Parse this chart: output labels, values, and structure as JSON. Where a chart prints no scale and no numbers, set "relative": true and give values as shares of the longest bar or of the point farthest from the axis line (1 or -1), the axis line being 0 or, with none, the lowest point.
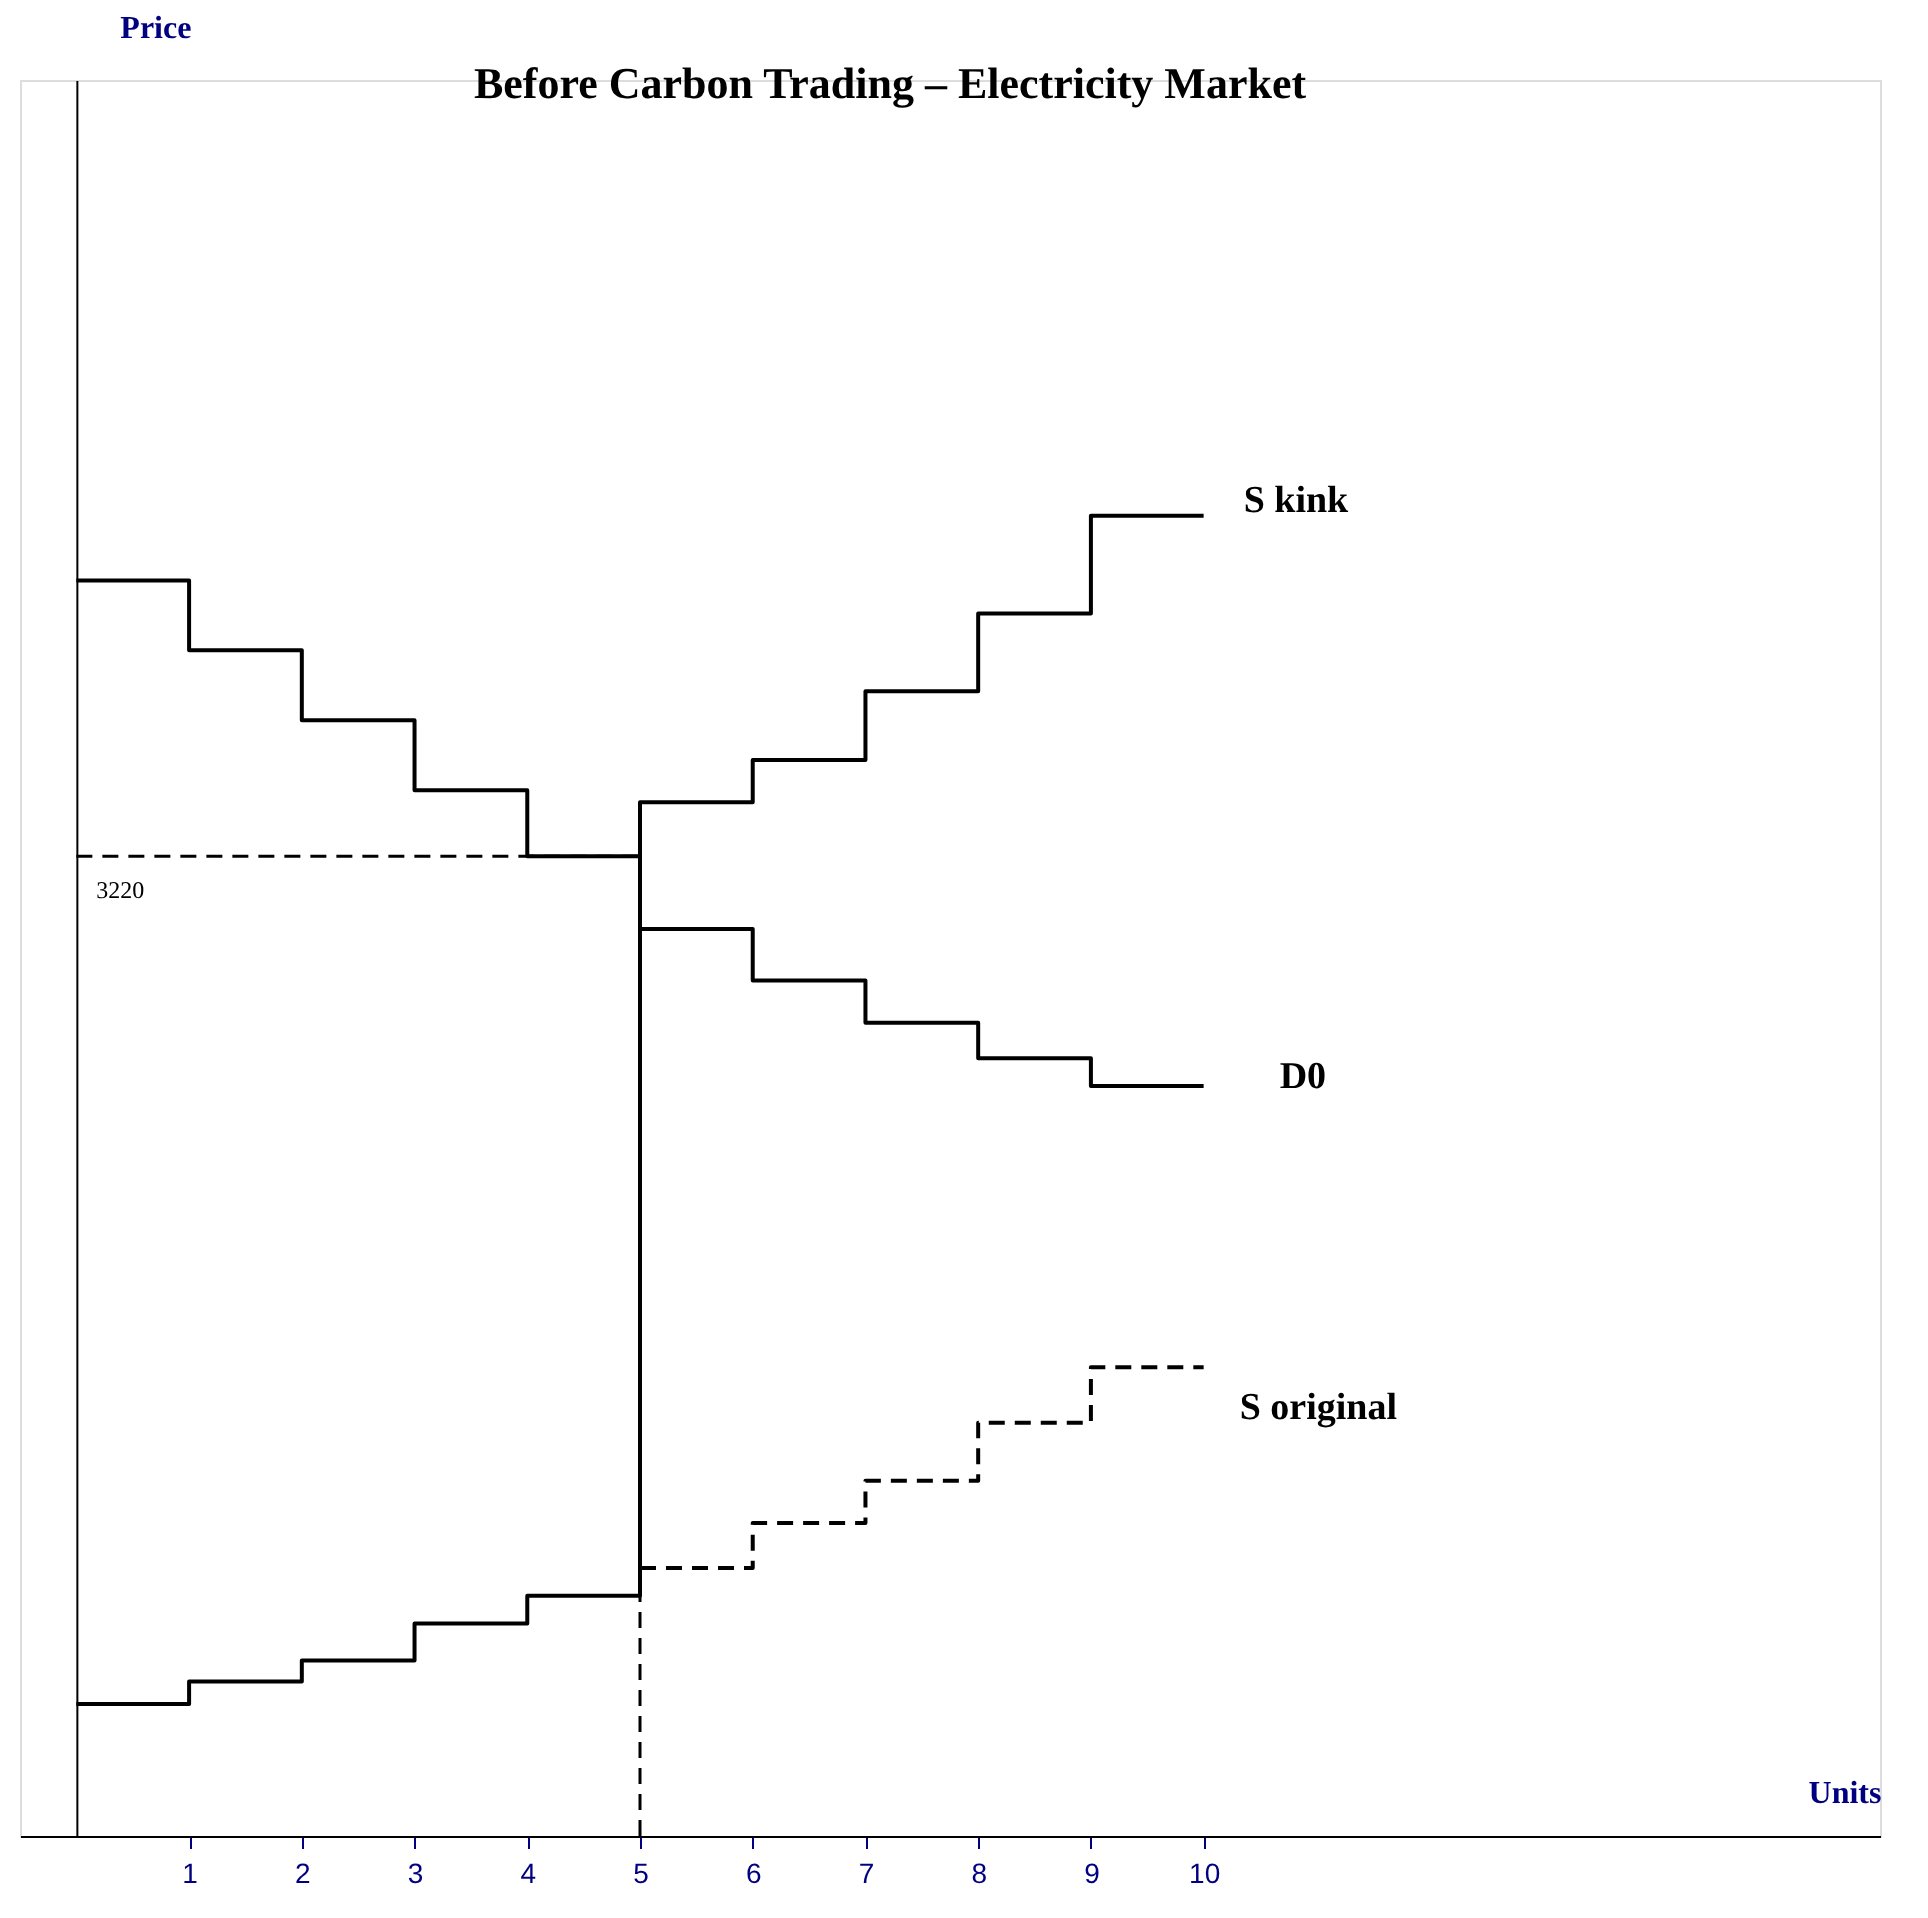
{
  "chart_data": {
    "type": "step",
    "title": "Before Carbon Trading – Electricity Market",
    "xlabel": "Units",
    "relative": true,
    "annotations": [
      "3220",
      "Price"
    ],
    "xlim": [
      -0.5,
      16
    ],
    "xticks": [
      1,
      2,
      3,
      4,
      5,
      6,
      7,
      8,
      9,
      10
    ],
    "legend": false,
    "grid": false,
    "marker": "none",
    "series": [
      {
        "name": "S kink",
        "color": "#000000",
        "line_style": "solid",
        "x": [
          0,
          1,
          2,
          3,
          4,
          5,
          5,
          6,
          7,
          8,
          9,
          10
        ],
        "values": [
          0.1,
          0.117,
          0.133,
          0.161,
          0.182,
          0.182,
          0.783,
          0.815,
          0.867,
          0.926,
          1,
          1
        ]
      },
      {
        "name": "D0",
        "color": "#000000",
        "line_style": "solid",
        "x": [
          0,
          1,
          2,
          3,
          4,
          5,
          6,
          7,
          8,
          9,
          10
        ],
        "values": [
          0.951,
          0.898,
          0.845,
          0.792,
          0.742,
          0.687,
          0.648,
          0.616,
          0.589,
          0.568,
          0.568
        ]
      },
      {
        "name": "S original",
        "color": "#000000",
        "line_style": "dashed",
        "x": [
          5,
          6,
          7,
          8,
          9,
          10
        ],
        "values": [
          0.203,
          0.237,
          0.269,
          0.313,
          0.355,
          0.355
        ]
      }
    ],
    "ref_lines": [
      {
        "axis": "y",
        "value": 0.742,
        "label": null,
        "color": "#000000",
        "line_style": "dashed"
      },
      {
        "axis": "x",
        "value": 5,
        "label": null,
        "color": "#000000",
        "line_style": "dashed"
      }
    ]
  }
}
